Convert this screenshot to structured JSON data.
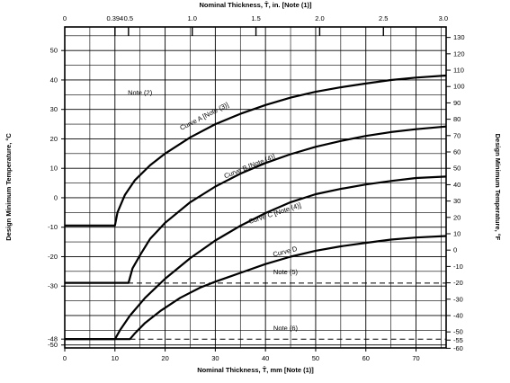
{
  "chart_data": {
    "type": "line",
    "title": "",
    "xlabel_bottom": "Nominal Thickness, T̄, mm [Note (1)]",
    "xlabel_top": "Nominal Thickness, T̄, in. [Note (1)]",
    "ylabel_left": "Design Minimum Temperature, °C",
    "ylabel_right": "Design Minimum Temperature, °F",
    "xlim_mm": [
      0,
      76
    ],
    "ylim_c": [
      -51,
      58
    ],
    "grid": true,
    "bottom_ticks": [
      "0",
      "10",
      "20",
      "30",
      "40",
      "50",
      "60",
      "70"
    ],
    "bottom_tick_values": [
      0,
      10,
      20,
      30,
      40,
      50,
      60,
      70
    ],
    "top_ticks": [
      "0",
      "0.394",
      "0.5",
      "1.0",
      "1.5",
      "2.0",
      "2.5",
      "3.0"
    ],
    "top_tick_values_in": [
      0,
      0.394,
      0.5,
      1.0,
      1.5,
      2.0,
      2.5,
      3.0
    ],
    "left_ticks": [
      "50",
      "40",
      "30",
      "20",
      "10",
      "0",
      "-10",
      "-20",
      "-30",
      "-48",
      "-50"
    ],
    "left_tick_values": [
      50,
      40,
      30,
      20,
      10,
      0,
      -10,
      -20,
      -30,
      -48,
      -50
    ],
    "right_ticks": [
      "130",
      "120",
      "110",
      "100",
      "90",
      "80",
      "70",
      "60",
      "50",
      "40",
      "30",
      "20",
      "10",
      "0",
      "-10",
      "-20",
      "-30",
      "-40",
      "-50",
      "-55",
      "-60"
    ],
    "right_tick_values_f": [
      130,
      120,
      110,
      100,
      90,
      80,
      70,
      60,
      50,
      40,
      30,
      20,
      10,
      0,
      -10,
      -20,
      -30,
      -40,
      -50,
      -55,
      -60
    ],
    "series": [
      {
        "name": "Curve A [Note (3)]",
        "style": "solid",
        "x": [
          0,
          10,
          10.5,
          12,
          14,
          17,
          20,
          25,
          30,
          35,
          40,
          45,
          50,
          55,
          60,
          65,
          70,
          76
        ],
        "y": [
          -9.4,
          -9.4,
          -5,
          1,
          6,
          11,
          15,
          20.5,
          25,
          28.5,
          31.5,
          34,
          36,
          37.5,
          38.8,
          40,
          40.8,
          41.5
        ]
      },
      {
        "name": "Curve B [Note (4)]",
        "style": "solid",
        "x": [
          0,
          12.7,
          13.5,
          15,
          17,
          20,
          25,
          30,
          35,
          40,
          45,
          50,
          55,
          60,
          65,
          70,
          76
        ],
        "y": [
          -28.9,
          -28.9,
          -24,
          -19.5,
          -14,
          -8.5,
          -1.5,
          3.8,
          8.2,
          11.8,
          14.8,
          17.3,
          19.3,
          21,
          22.3,
          23.3,
          24.2
        ]
      },
      {
        "name": "Curve C [Note (4)]",
        "style": "solid",
        "x": [
          0,
          10,
          11,
          13,
          16,
          20,
          25,
          30,
          35,
          40,
          45,
          50,
          55,
          60,
          65,
          70,
          76
        ],
        "y": [
          -48,
          -48,
          -45,
          -40,
          -34,
          -27.5,
          -20.5,
          -14.5,
          -9.5,
          -5.2,
          -1.5,
          1.2,
          3,
          4.5,
          5.7,
          6.7,
          7.2
        ]
      },
      {
        "name": "Curve D",
        "style": "solid",
        "x": [
          0,
          13,
          14,
          16,
          19,
          23,
          27,
          30,
          35,
          40,
          45,
          50,
          55,
          60,
          65,
          70,
          76
        ],
        "y": [
          -48,
          -48,
          -46,
          -42.5,
          -38.5,
          -34,
          -30.5,
          -28.5,
          -25.5,
          -22.5,
          -20,
          -18,
          -16.5,
          -15.3,
          -14.2,
          -13.5,
          -13
        ]
      },
      {
        "name": "Note (5)",
        "style": "dashed",
        "x": [
          0,
          76
        ],
        "y": [
          -29,
          -29
        ]
      },
      {
        "name": "Note (6)",
        "style": "dashed",
        "x": [
          13,
          76
        ],
        "y": [
          -48,
          -48
        ]
      }
    ],
    "annotations": [
      {
        "text": "Note (2)",
        "x": 15,
        "y": 35
      },
      {
        "text": "Curve A [Note (3)]",
        "x": 28,
        "y": 27
      },
      {
        "text": "Curve B [Note (4)]",
        "x": 37,
        "y": 10
      },
      {
        "text": "Curve C [Note (4)]",
        "x": 42,
        "y": -6
      },
      {
        "text": "Curve D",
        "x": 44,
        "y": -19
      },
      {
        "text": "Note (5)",
        "x": 44,
        "y": -26
      },
      {
        "text": "Note (6)",
        "x": 44,
        "y": -45
      }
    ]
  }
}
